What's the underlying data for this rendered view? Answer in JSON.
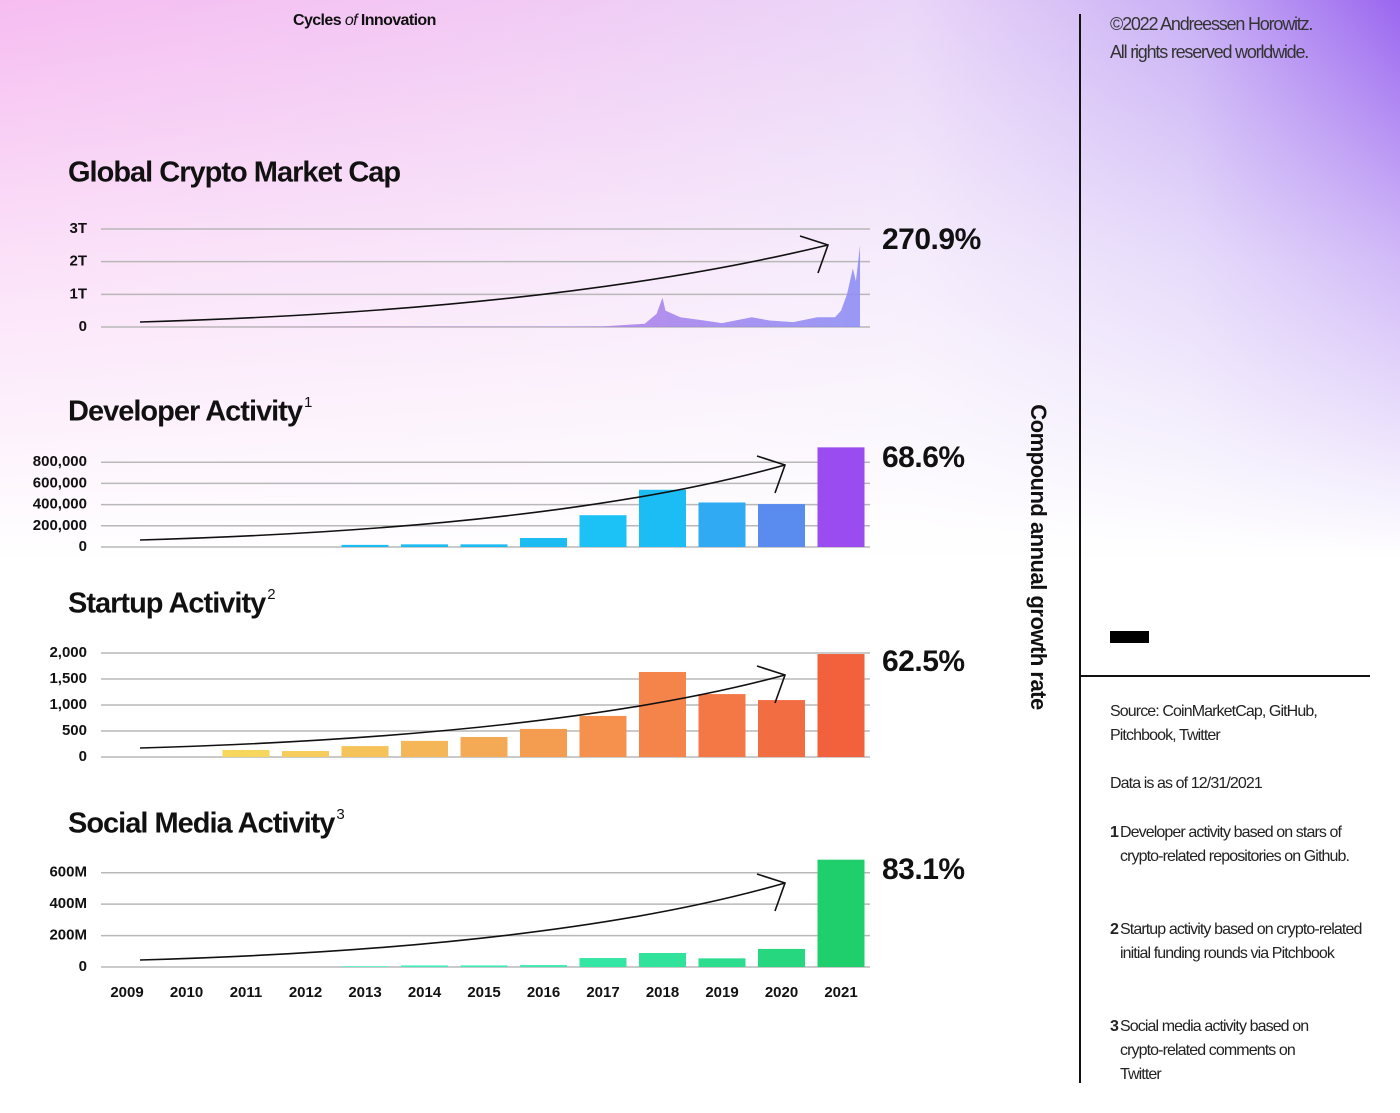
{
  "header": {
    "title_start": "Cycles",
    "title_italic": "of",
    "title_end": "Innovation"
  },
  "copyright": [
    "©2022 Andreessen Horowitz.",
    "All rights reserved worldwide."
  ],
  "axis_note": "Compound annual growth rate",
  "sidebar": {
    "source": "Source: CoinMarketCap, GitHub, Pitchbook, Twitter",
    "data_date": "Data is as of 12/31/2021",
    "footnotes": [
      {
        "number": "1",
        "text": "Developer activity based on stars of crypto-related repositories on Github."
      },
      {
        "number": "2",
        "text": "Startup activity based on crypto-related initial funding rounds via Pitchbook"
      },
      {
        "number": "3",
        "text": "Social media activity based on crypto-related comments on Twitter"
      }
    ]
  },
  "chart_data": [
    {
      "type": "area",
      "title": "Global Crypto Market Cap",
      "growth_rate": "270.9%",
      "grid": true,
      "x": [
        2009,
        2013,
        2016,
        2017,
        2017.7,
        2017.9,
        2018,
        2018.05,
        2018.3,
        2018.7,
        2019,
        2019.5,
        2019.8,
        2020.2,
        2020.6,
        2020.9,
        2021,
        2021.1,
        2021.2,
        2021.25,
        2021.32
      ],
      "values": [
        0,
        0.01,
        0.01,
        0.02,
        0.1,
        0.4,
        0.9,
        0.5,
        0.3,
        0.2,
        0.12,
        0.3,
        0.2,
        0.15,
        0.3,
        0.3,
        0.5,
        1.0,
        1.8,
        1.4,
        2.5
      ],
      "xlim": [
        2009,
        2021
      ],
      "ylim": [
        0,
        3
      ],
      "yticks": [
        0,
        {
          "value": 1,
          "label": "1T"
        },
        {
          "value": 2,
          "label": "2T"
        },
        {
          "value": 3,
          "label": "3T"
        }
      ],
      "colors": [
        "#f06ad6",
        "#8f8ff5"
      ]
    },
    {
      "type": "bar",
      "title": "Developer Activity",
      "title_note": "1",
      "growth_rate": "68.6%",
      "grid": true,
      "values": [
        0,
        0,
        0,
        0,
        20000,
        25000,
        25000,
        85000,
        300000,
        540000,
        420000,
        405000,
        940000
      ],
      "colors": [
        "#1cc0f5",
        "#1cc0f5",
        "#1cc0f5",
        "#1cc0f5",
        "#1cbcf3",
        "#1cbcf3",
        "#1cbcf3",
        "#1cbcf3",
        "#1cc2f6",
        "#1cbcf5",
        "#2faaf3",
        "#5a8cf0",
        "#9b4cf0"
      ],
      "ylim": [
        0,
        1000000
      ],
      "yticks": [
        0,
        {
          "value": 200000,
          "label": "200,000"
        },
        {
          "value": 400000,
          "label": "400,000"
        },
        {
          "value": 600000,
          "label": "600,000"
        },
        {
          "value": 800000,
          "label": "800,000"
        }
      ]
    },
    {
      "type": "bar",
      "title": "Startup Activity",
      "title_note": "2",
      "growth_rate": "62.5%",
      "grid": true,
      "values": [
        0,
        0,
        135,
        115,
        210,
        310,
        385,
        540,
        790,
        1635,
        1210,
        1095,
        1980
      ],
      "colors": [
        "#f7d65e",
        "#f7d65e",
        "#f7d65e",
        "#f6cd5c",
        "#f6c35a",
        "#f4b657",
        "#f4a954",
        "#f49c50",
        "#f5904d",
        "#f5844a",
        "#f47846",
        "#f36d42",
        "#f2613c"
      ],
      "ylim": [
        0,
        2000
      ],
      "yticks": [
        0,
        500,
        {
          "value": 1000,
          "label": "1,000"
        },
        {
          "value": 1500,
          "label": "1,500"
        },
        {
          "value": 2000,
          "label": "2,000"
        }
      ]
    },
    {
      "type": "bar",
      "title": "Social Media Activity",
      "title_note": "3",
      "growth_rate": "83.1%",
      "grid": true,
      "categories": [
        "2009",
        "2010",
        "2011",
        "2012",
        "2013",
        "2014",
        "2015",
        "2016",
        "2017",
        "2018",
        "2019",
        "2020",
        "2021"
      ],
      "values": [
        0,
        0,
        0,
        0,
        5,
        10,
        10,
        12,
        57,
        89,
        55,
        115,
        683
      ],
      "colors": [
        "#4af2c8",
        "#4af2c8",
        "#4af2c8",
        "#4af2c8",
        "#4af2c8",
        "#40efc0",
        "#3cecb8",
        "#38e9b0",
        "#34e6a4",
        "#30e29a",
        "#2cdd8e",
        "#26d780",
        "#1ecf6c"
      ],
      "ylim": [
        0,
        700
      ],
      "yticks": [
        0,
        {
          "value": 200,
          "label": "200M"
        },
        {
          "value": 400,
          "label": "400M"
        },
        {
          "value": 600,
          "label": "600M"
        }
      ]
    }
  ]
}
